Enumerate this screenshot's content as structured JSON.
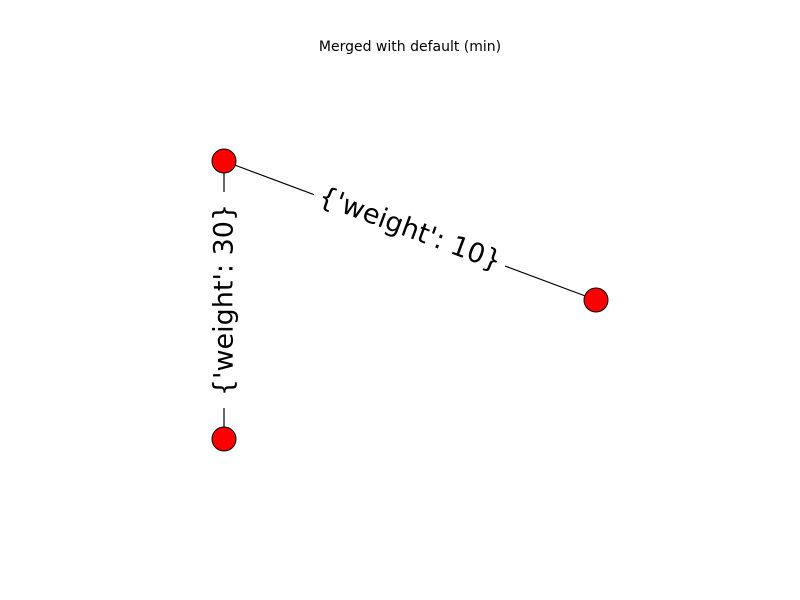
{
  "title": "Merged with default (min)",
  "colors": {
    "node_fill": "#ff0000",
    "node_stroke": "#000000",
    "edge": "#000000",
    "background": "#ffffff"
  },
  "graph": {
    "nodes": [
      {
        "id": "top"
      },
      {
        "id": "bottom"
      },
      {
        "id": "right"
      }
    ],
    "edges": [
      {
        "id": "top-right",
        "source": "top",
        "target": "right",
        "label": "{'weight': 10}"
      },
      {
        "id": "top-bottom",
        "source": "top",
        "target": "bottom",
        "label": "{'weight': 30}"
      }
    ]
  }
}
